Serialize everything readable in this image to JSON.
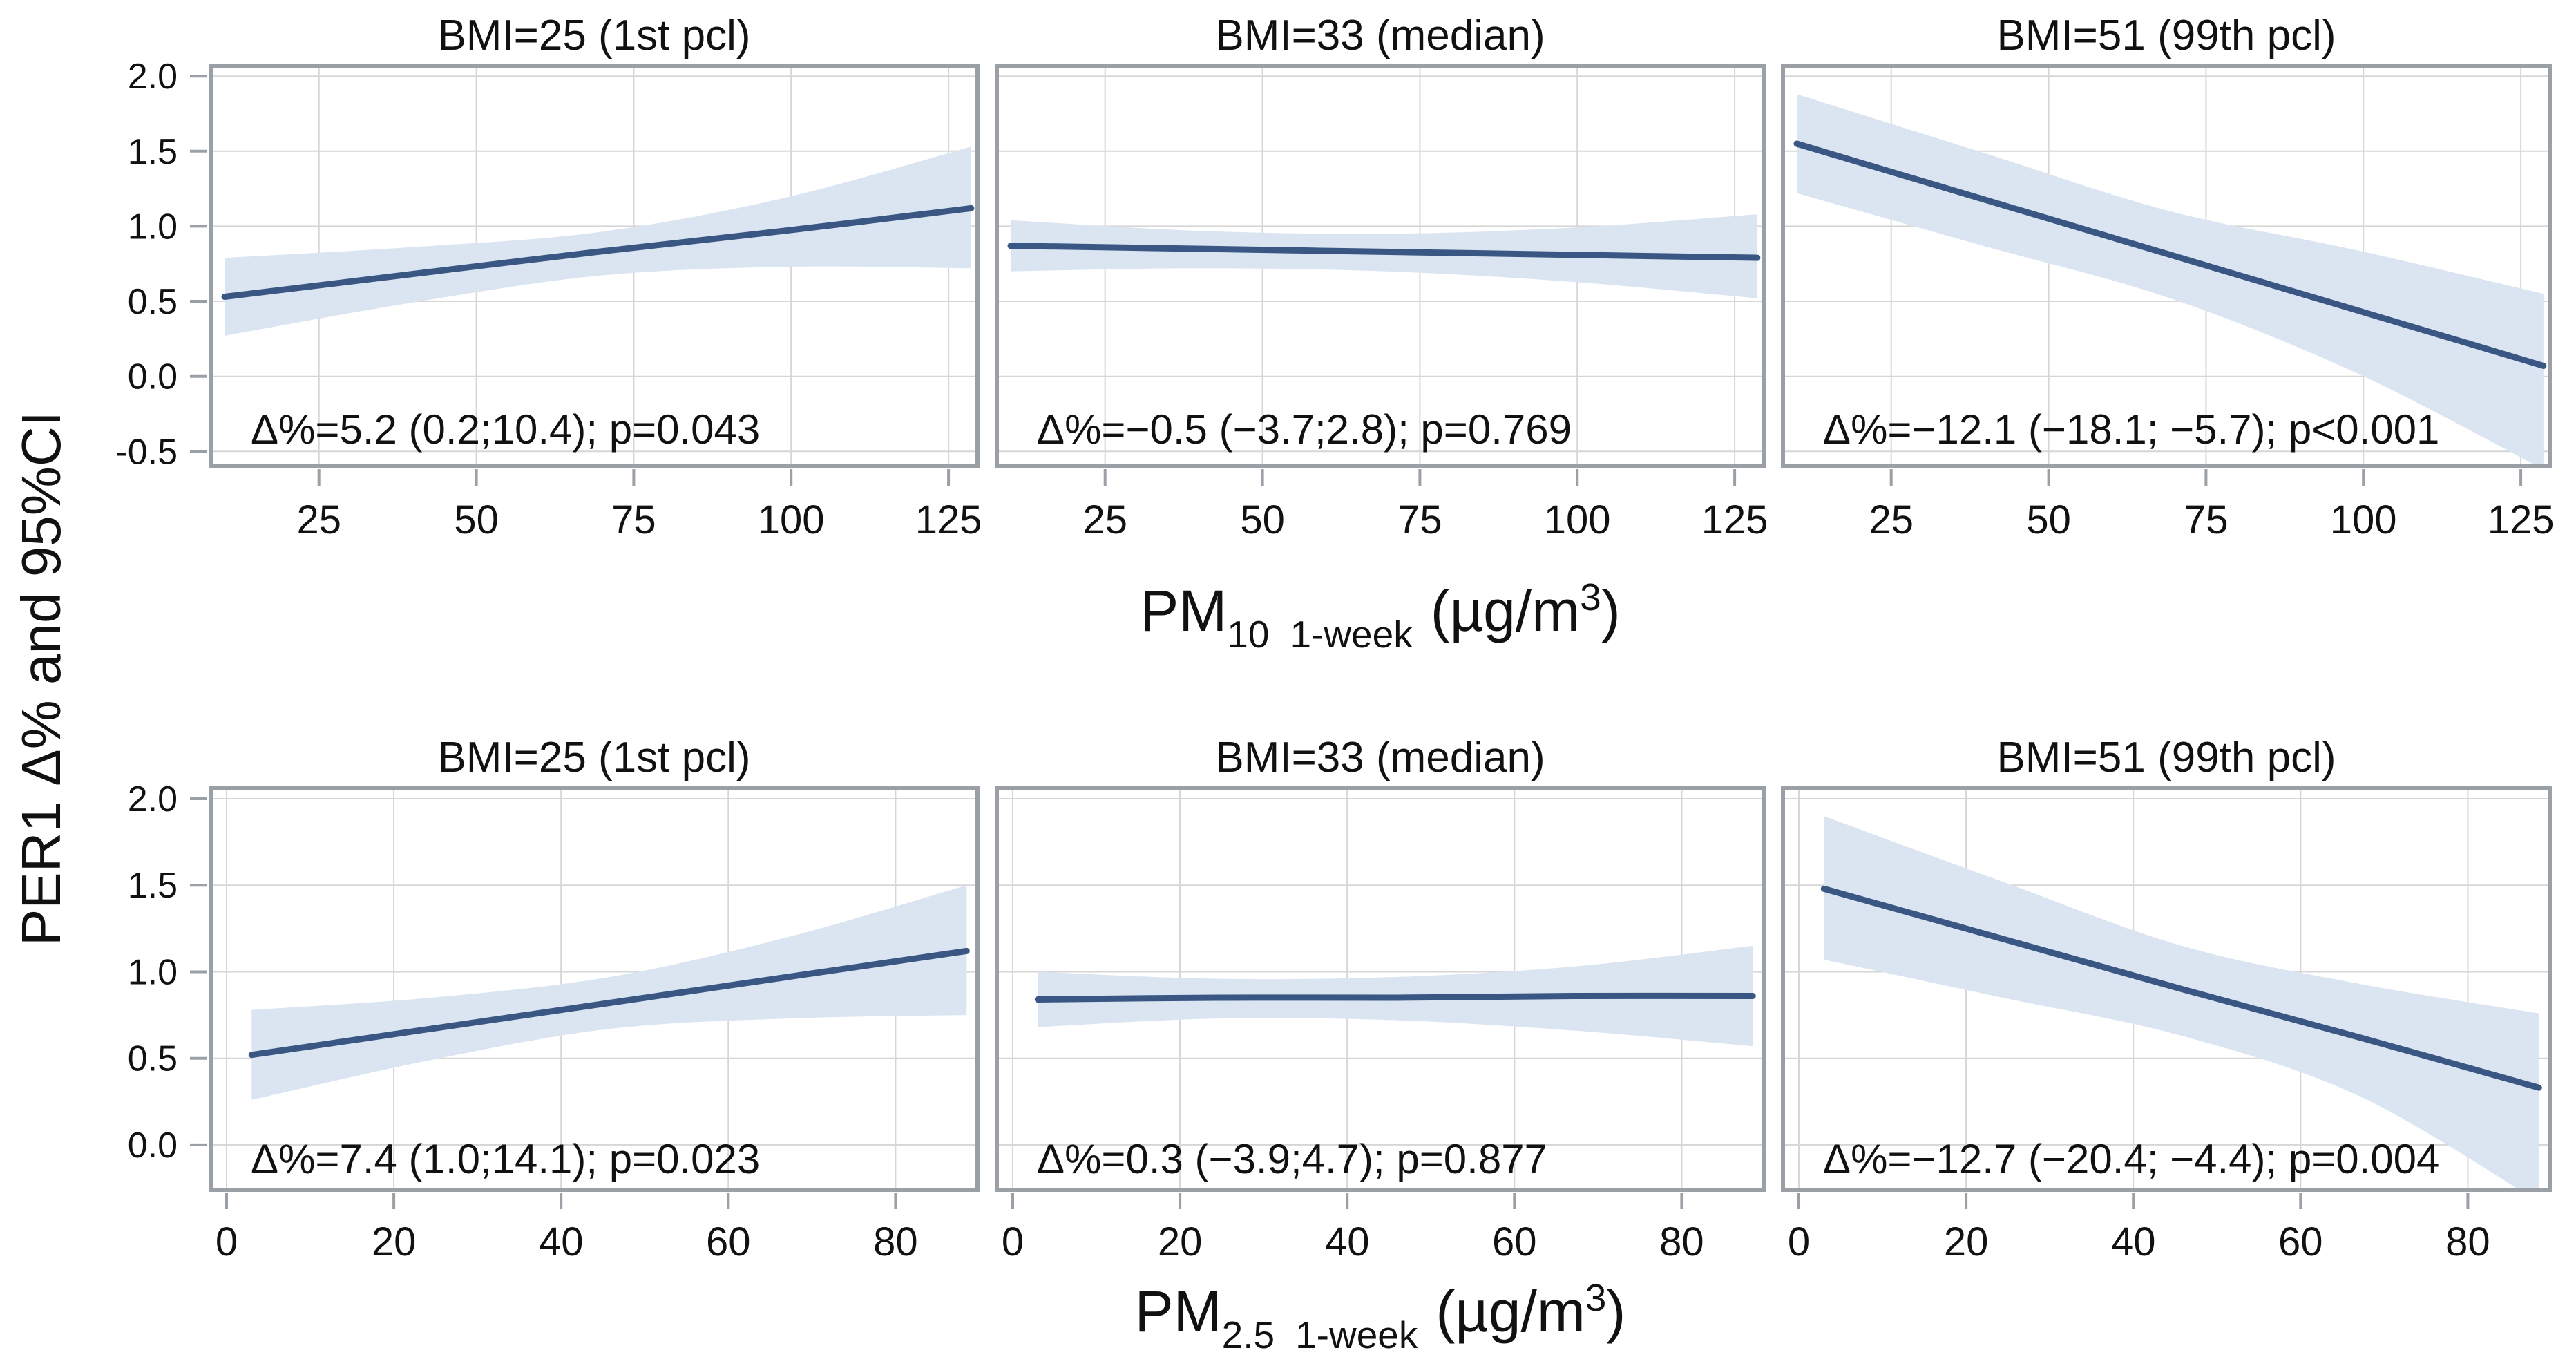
{
  "chart_data": {
    "type": "line",
    "ylabel": "PER1 Δ% and 95%CI",
    "grid": true,
    "legend": "none",
    "colors": {
      "line": "#3a5784",
      "band": "#dbe5f1",
      "grid": "#d6d6d6",
      "border": "#9aa0a6",
      "tick": "#9aa0a6",
      "text": "#111111",
      "background": "#ffffff"
    },
    "rows": [
      {
        "xlabel_parts": {
          "base": "PM",
          "sub1": "10",
          "sub2": "1-week",
          "unit_open": "(µg/m",
          "sup": "3",
          "unit_close": ")"
        },
        "x_domain": [
          7.8,
          129.6
        ],
        "y_domain": [
          -0.6,
          2.07
        ],
        "x_samples": [
          10,
          39.6,
          69.3,
          99,
          128.6
        ],
        "x_ticks": [
          {
            "v": 25,
            "label": "25"
          },
          {
            "v": 50,
            "label": "50"
          },
          {
            "v": 75,
            "label": "75"
          },
          {
            "v": 100,
            "label": "100"
          },
          {
            "v": 125,
            "label": "125"
          }
        ],
        "y_ticks": [
          {
            "v": 2,
            "label": "2.0"
          },
          {
            "v": 1.5,
            "label": "1.5"
          },
          {
            "v": 1,
            "label": "1.0"
          },
          {
            "v": 0.5,
            "label": "0.5"
          },
          {
            "v": 0,
            "label": "0.0"
          },
          {
            "v": -0.5,
            "label": "-0.5"
          }
        ],
        "panels": [
          {
            "title": "BMI=25 (1st pcl)",
            "annotation": "Δ%=5.2 (0.2;10.4); p=0.043",
            "line": [
              0.53,
              0.68,
              0.83,
              0.97,
              1.12
            ],
            "ci_upper": [
              0.79,
              0.86,
              0.96,
              1.19,
              1.53
            ],
            "ci_lower": [
              0.27,
              0.49,
              0.67,
              0.73,
              0.72
            ]
          },
          {
            "title": "BMI=33 (median)",
            "annotation": "Δ%=−0.5 (−3.7;2.8); p=0.769",
            "line": [
              0.87,
              0.85,
              0.83,
              0.81,
              0.79
            ],
            "ci_upper": [
              1.04,
              0.97,
              0.95,
              0.99,
              1.08
            ],
            "ci_lower": [
              0.7,
              0.72,
              0.7,
              0.63,
              0.52
            ]
          },
          {
            "title": "BMI=51 (99th pcl)",
            "annotation": "Δ%=−12.1 (−18.1; −5.7); p<0.001",
            "line": [
              1.55,
              1.18,
              0.81,
              0.44,
              0.07
            ],
            "ci_upper": [
              1.88,
              1.49,
              1.1,
              0.84,
              0.55
            ],
            "ci_lower": [
              1.22,
              0.87,
              0.52,
              0.02,
              -0.62
            ]
          }
        ]
      },
      {
        "xlabel_parts": {
          "base": "PM",
          "sub1": "2.5",
          "sub2": "1-week",
          "unit_open": "(µg/m",
          "sup": "3",
          "unit_close": ")"
        },
        "x_domain": [
          -1.9,
          89.8
        ],
        "y_domain": [
          -0.26,
          2.06
        ],
        "x_samples": [
          3,
          24.4,
          45.8,
          67.1,
          88.5
        ],
        "x_ticks": [
          {
            "v": 0,
            "label": "0"
          },
          {
            "v": 20,
            "label": "20"
          },
          {
            "v": 40,
            "label": "40"
          },
          {
            "v": 60,
            "label": "60"
          },
          {
            "v": 80,
            "label": "80"
          }
        ],
        "y_ticks": [
          {
            "v": 2,
            "label": "2.0"
          },
          {
            "v": 1.5,
            "label": "1.5"
          },
          {
            "v": 1,
            "label": "1.0"
          },
          {
            "v": 0.5,
            "label": "0.5"
          },
          {
            "v": 0,
            "label": "0.0"
          }
        ],
        "panels": [
          {
            "title": "BMI=25 (1st pcl)",
            "annotation": "Δ%=7.4 (1.0;14.1); p=0.023",
            "line": [
              0.52,
              0.67,
              0.82,
              0.97,
              1.12
            ],
            "ci_upper": [
              0.78,
              0.85,
              0.97,
              1.2,
              1.5
            ],
            "ci_lower": [
              0.26,
              0.49,
              0.67,
              0.73,
              0.75
            ]
          },
          {
            "title": "BMI=33 (median)",
            "annotation": "Δ%=0.3 (−3.9;4.7); p=0.877",
            "line": [
              0.84,
              0.85,
              0.85,
              0.86,
              0.86
            ],
            "ci_upper": [
              1.0,
              0.96,
              0.97,
              1.03,
              1.15
            ],
            "ci_lower": [
              0.68,
              0.73,
              0.72,
              0.66,
              0.57
            ]
          },
          {
            "title": "BMI=51 (99th pcl)",
            "annotation": "Δ%=−12.7 (−20.4; −4.4); p=0.004",
            "line": [
              1.48,
              1.19,
              0.9,
              0.62,
              0.33
            ],
            "ci_upper": [
              1.9,
              1.52,
              1.15,
              0.93,
              0.76
            ],
            "ci_lower": [
              1.07,
              0.85,
              0.63,
              0.28,
              -0.33
            ]
          }
        ]
      }
    ]
  }
}
